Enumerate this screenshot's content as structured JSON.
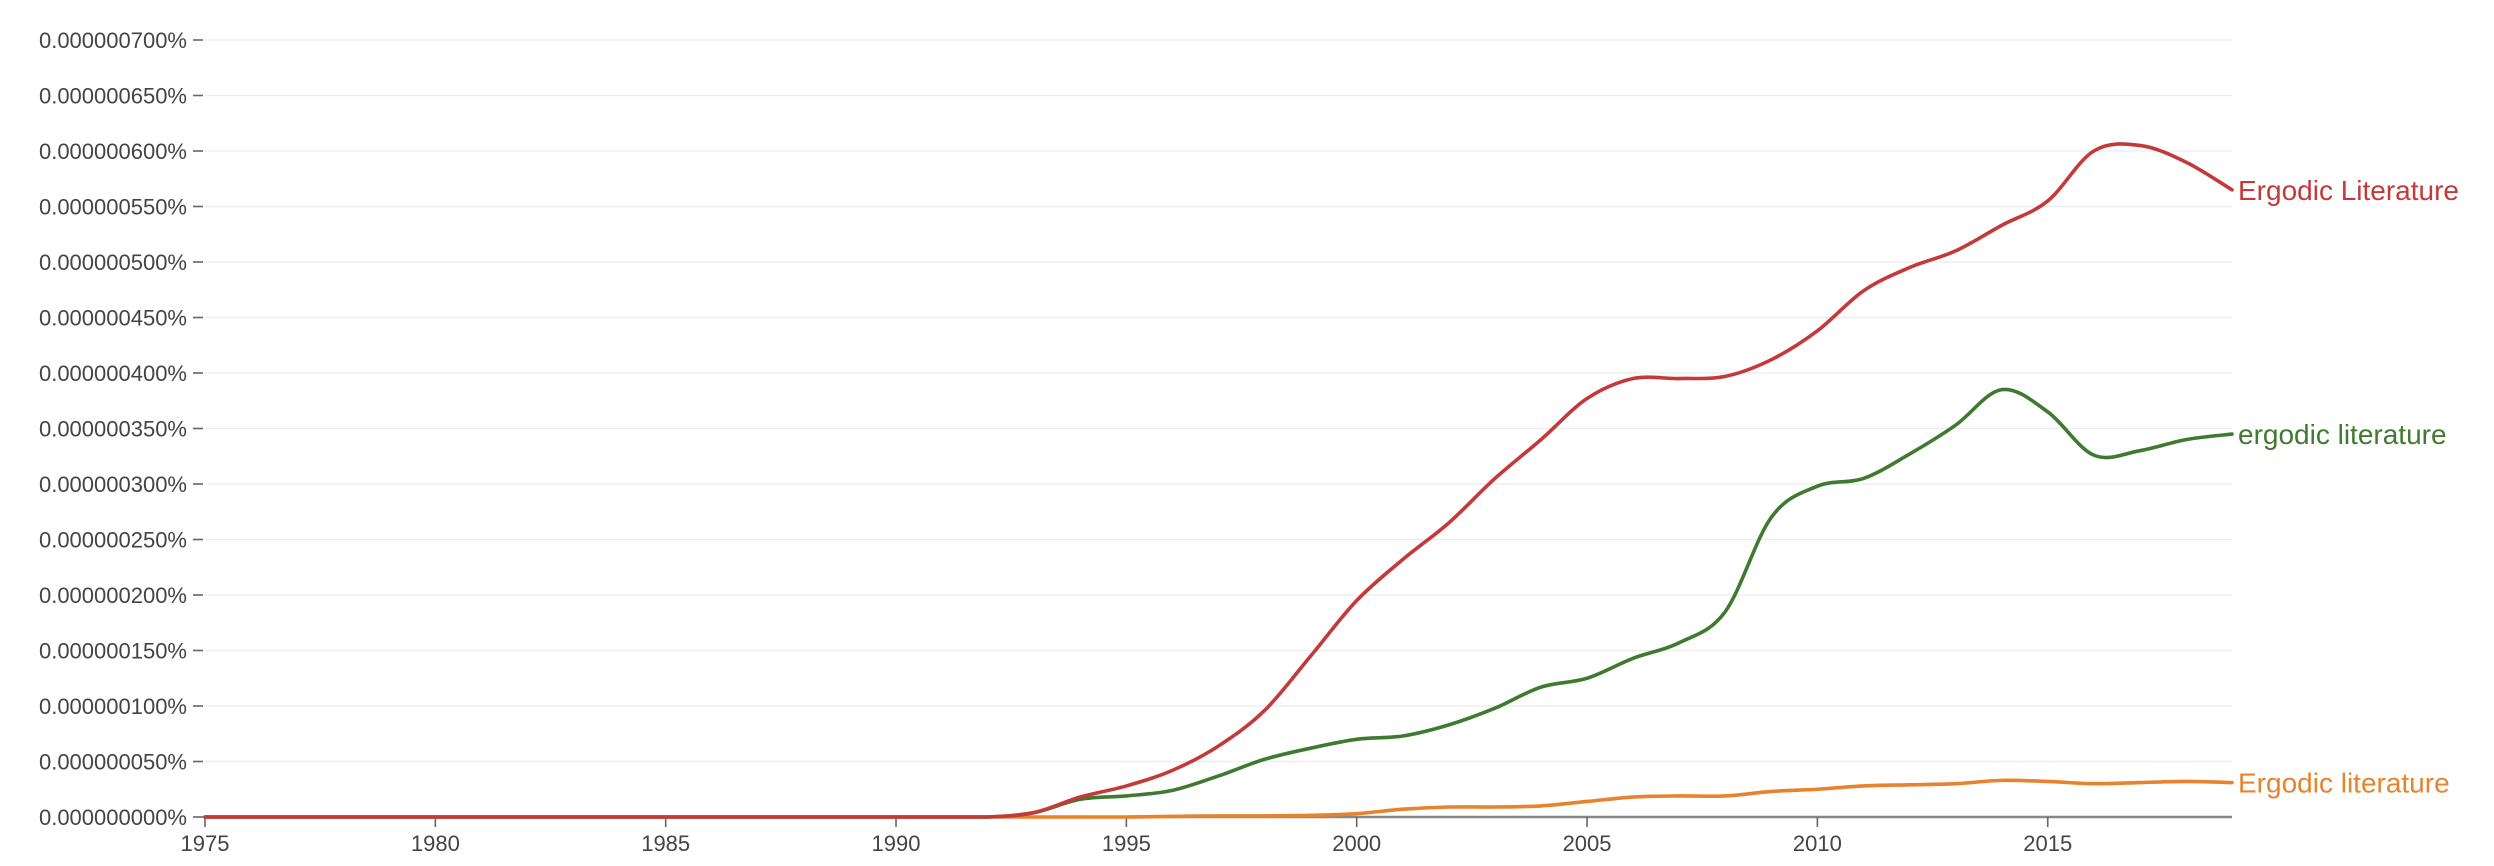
{
  "chart_data": {
    "type": "line",
    "title": "",
    "xlabel": "",
    "ylabel": "",
    "xlim": [
      1975,
      2019
    ],
    "ylim": [
      0,
      7e-07
    ],
    "grid": true,
    "legend": "inline-right",
    "x_ticks": [
      "1975",
      "1980",
      "1985",
      "1990",
      "1995",
      "2000",
      "2005",
      "2010",
      "2015"
    ],
    "x_tick_values": [
      1975,
      1980,
      1985,
      1990,
      1995,
      2000,
      2005,
      2010,
      2015
    ],
    "y_ticks": [
      "0.000000000%",
      "0.000000050%",
      "0.000000100%",
      "0.000000150%",
      "0.000000200%",
      "0.000000250%",
      "0.000000300%",
      "0.000000350%",
      "0.000000400%",
      "0.000000450%",
      "0.000000500%",
      "0.000000550%",
      "0.000000600%",
      "0.000000650%",
      "0.000000700%"
    ],
    "y_tick_values": [
      0,
      5e-08,
      1e-07,
      1.5e-07,
      2e-07,
      2.5e-07,
      3e-07,
      3.5e-07,
      4e-07,
      4.5e-07,
      5e-07,
      5.5e-07,
      6e-07,
      6.5e-07,
      7e-07
    ],
    "x": [
      1975,
      1976,
      1977,
      1978,
      1979,
      1980,
      1981,
      1982,
      1983,
      1984,
      1985,
      1986,
      1987,
      1988,
      1989,
      1990,
      1991,
      1992,
      1993,
      1994,
      1995,
      1996,
      1997,
      1998,
      1999,
      2000,
      2001,
      2002,
      2003,
      2004,
      2005,
      2006,
      2007,
      2008,
      2009,
      2010,
      2011,
      2012,
      2013,
      2014,
      2015,
      2016,
      2017,
      2018,
      2019
    ],
    "series": [
      {
        "name": "Ergodic Literature",
        "color": "#c4393a",
        "values": [
          0,
          0,
          0,
          0,
          0,
          0,
          0,
          0,
          0,
          0,
          0,
          0,
          0,
          0,
          0,
          0,
          0,
          0,
          4e-09,
          1.8e-08,
          2.8e-08,
          4.2e-08,
          6.4e-08,
          9.6e-08,
          1.45e-07,
          1.95e-07,
          2.32e-07,
          2.65e-07,
          3.05e-07,
          3.4e-07,
          3.77e-07,
          3.95e-07,
          3.95e-07,
          3.97e-07,
          4.12e-07,
          4.38e-07,
          4.74e-07,
          4.95e-07,
          5.1e-07,
          5.33e-07,
          5.55e-07,
          6e-07,
          6.05e-07,
          5.9e-07,
          5.65e-07
        ]
      },
      {
        "name": "ergodic literature",
        "color": "#3f7a30",
        "values": [
          0,
          0,
          0,
          0,
          0,
          0,
          0,
          0,
          0,
          0,
          0,
          0,
          0,
          0,
          0,
          0,
          0,
          0,
          4e-09,
          1.6e-08,
          1.9e-08,
          2.4e-08,
          3.7e-08,
          5.2e-08,
          6.2e-08,
          7e-08,
          7.3e-08,
          8.3e-08,
          9.8e-08,
          1.17e-07,
          1.25e-07,
          1.43e-07,
          1.57e-07,
          1.85e-07,
          2.7e-07,
          2.98e-07,
          3.05e-07,
          3.27e-07,
          3.53e-07,
          3.85e-07,
          3.65e-07,
          3.26e-07,
          3.3e-07,
          3.4e-07,
          3.45e-07
        ]
      },
      {
        "name": "Ergodic literature",
        "color": "#e8822d",
        "values": [
          0,
          0,
          0,
          0,
          0,
          0,
          0,
          0,
          0,
          0,
          0,
          0,
          0,
          0,
          0,
          0,
          0,
          0,
          0,
          0,
          0,
          5e-10,
          1e-09,
          1e-09,
          1.5e-09,
          3e-09,
          7e-09,
          9e-09,
          9e-09,
          1e-08,
          1.4e-08,
          1.8e-08,
          1.9e-08,
          1.9e-08,
          2.3e-08,
          2.5e-08,
          2.8e-08,
          2.9e-08,
          3e-08,
          3.3e-08,
          3.2e-08,
          3e-08,
          3.1e-08,
          3.2e-08,
          3.1e-08
        ]
      }
    ]
  }
}
